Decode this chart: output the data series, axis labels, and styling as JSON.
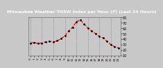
{
  "hours": [
    0,
    1,
    2,
    3,
    4,
    5,
    6,
    7,
    8,
    9,
    10,
    11,
    12,
    13,
    14,
    15,
    16,
    17,
    18,
    19,
    20,
    21,
    22,
    23
  ],
  "thsw": [
    33,
    34,
    32,
    33,
    35,
    36,
    35,
    37,
    41,
    46,
    55,
    62,
    72,
    75,
    68,
    60,
    55,
    50,
    45,
    42,
    36,
    30,
    26,
    24
  ],
  "line_color": "#ff0000",
  "marker_color": "#000000",
  "bg_color": "#c8c8c8",
  "plot_bg": "#c8c8c8",
  "title_bg": "#000000",
  "title_color": "#ffffff",
  "title": "Milwaukee Weather THSW Index per Hour (F) (Last 24 Hours)",
  "ylim": [
    10,
    80
  ],
  "yticks": [
    10,
    20,
    30,
    40,
    50,
    60,
    70,
    80
  ],
  "grid_color": "#888888",
  "grid_vlines": [
    0,
    3,
    6,
    9,
    12,
    15,
    18,
    21
  ],
  "title_fontsize": 4.5,
  "tick_fontsize": 3.5,
  "line_width": 0.9,
  "marker_size": 2.0
}
